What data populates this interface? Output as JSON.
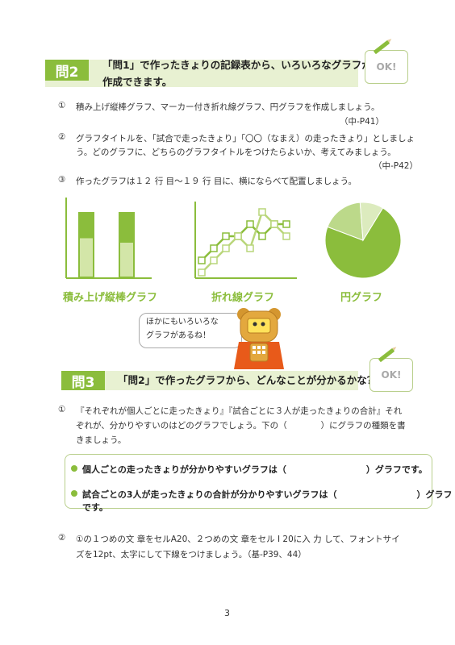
{
  "q2": {
    "badge": "問2",
    "title_line1": "「問1」で作ったきょりの記録表から、いろいろなグラフが",
    "title_line2": "作成できます。",
    "ok": "OK!",
    "items": [
      {
        "num": "①",
        "lines": [
          "積み上げ縦棒グラフ、マーカー付き折れ線グラフ、円グラフを作成しましょう。"
        ],
        "ref": "（中-P41）"
      },
      {
        "num": "②",
        "lines": [
          "グラフタイトルを、「試合で走ったきょり」「〇〇（なまえ）の走ったきょり」としましょ",
          "う。どのグラフに、どちらのグラフタイトルをつけたらよいか、考えてみましょう。"
        ],
        "ref": "（中-P42）"
      },
      {
        "num": "③",
        "lines": [
          "作ったグラフは１２ 行 目〜１９ 行 目に、横にならべて配置しましょう。"
        ],
        "ref": ""
      }
    ],
    "graph_labels": [
      "積み上げ縦棒グラフ",
      "折れ線グラフ",
      "円グラフ"
    ]
  },
  "bubble": {
    "line1": "ほかにもいろいろな",
    "line2": "グラフがあるね！"
  },
  "q3": {
    "badge": "問3",
    "title": "「問2」で作ったグラフから、どんなことが分かるかな？",
    "ok": "OK!",
    "item1_num": "①",
    "item1_lines": [
      "『それぞれが個人ごとに走ったきょり』『試合ごとに３人が走ったきょりの合計』それ",
      "ぞれが、分かりやすいのはどのグラフでしょう。下の（　　　　）にグラフの種類を書",
      "きましょう。"
    ],
    "bullets": [
      "個人ごとの走ったきょりが分かりやすいグラフは（　　　　　　　　　）グラフです。",
      "試合ごとの3人が走ったきょりの合計が分かりやすいグラフは（　　　　　　　　　）グラフです。"
    ],
    "item2_num": "②",
    "item2_lines": [
      "①の１つめの文 章をセルA20、２つめの文 章をセル I 20に入 力 して、フォントサイ",
      "ズを12pt、太字にして下線をつけましょう。（基-P39、44）"
    ]
  },
  "page_number": "3",
  "colors": {
    "accent": "#8bbd3c",
    "light": "#d8e8b0",
    "bar_top": "#8bbd3c",
    "bar_bottom": "#d3e6a8"
  },
  "charts": {
    "stacked_bar": [
      {
        "bottom": 0.62,
        "top": 0.38
      },
      {
        "bottom": 0.55,
        "top": 0.45
      }
    ],
    "line_series": [
      [
        1,
        2,
        3,
        3,
        4,
        3,
        4,
        4
      ],
      [
        0,
        1,
        2,
        3,
        2,
        5,
        4,
        3
      ]
    ],
    "pie": [
      0.72,
      0.18,
      0.1
    ]
  }
}
